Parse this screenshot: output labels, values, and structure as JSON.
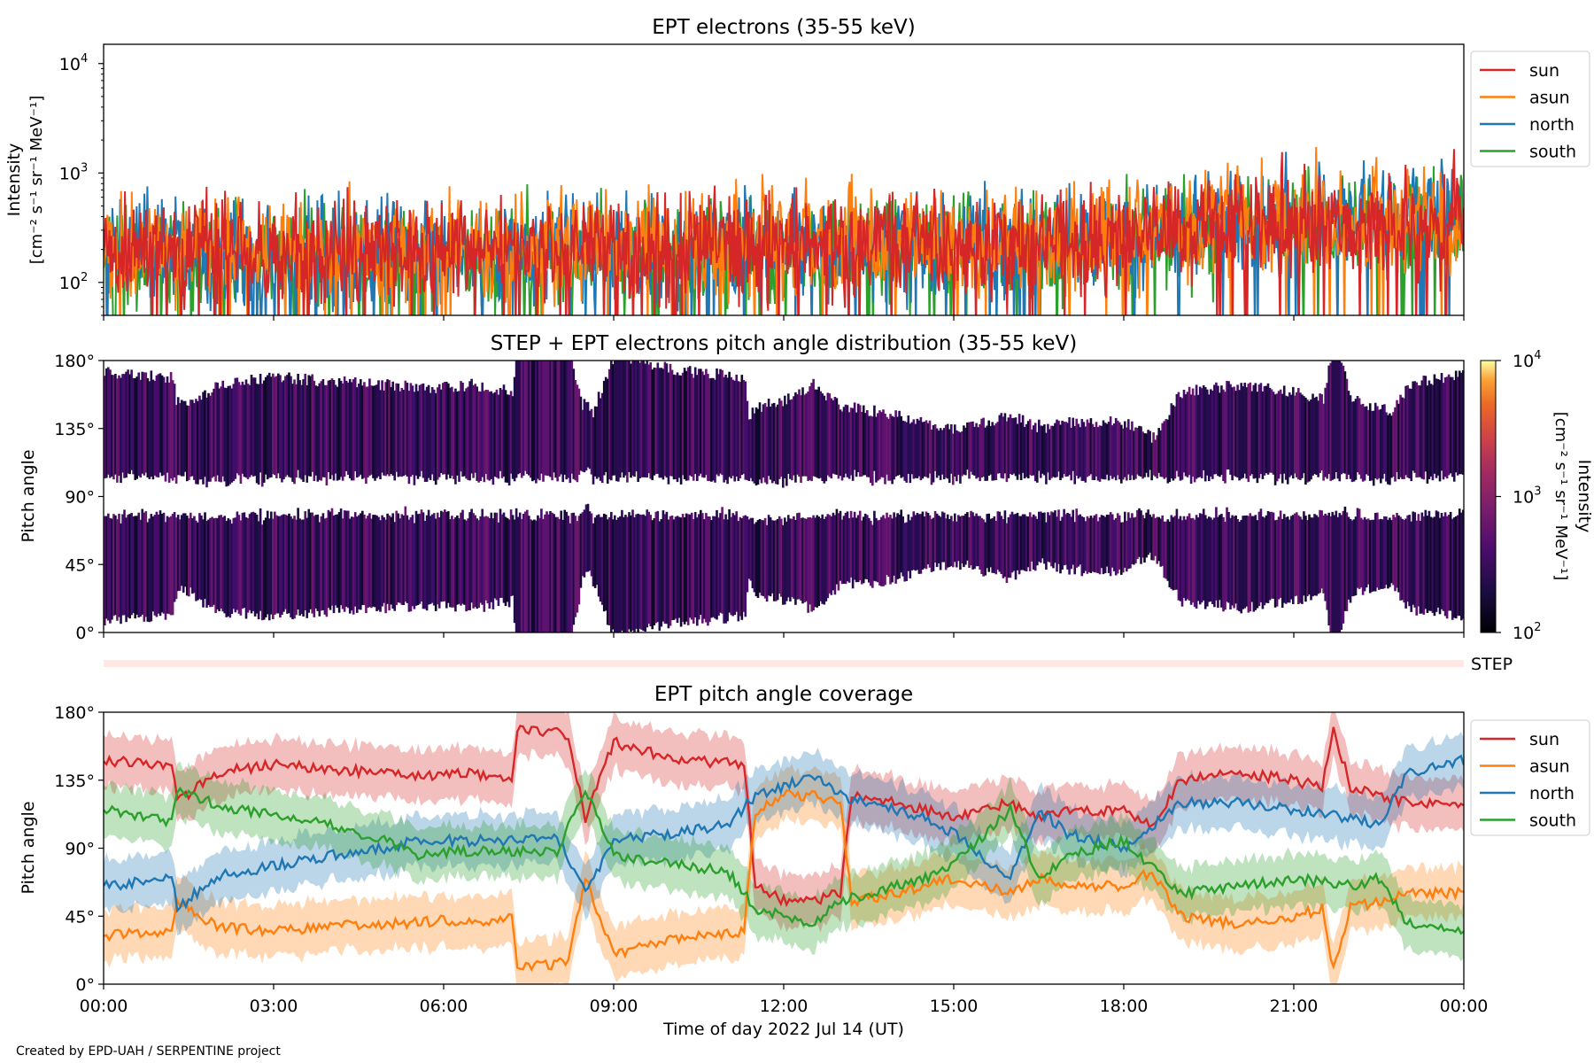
{
  "figure": {
    "credit": "Created by EPD-UAH / SERPENTINE project",
    "xlabel": "Time of day 2022 Jul 14 (UT)",
    "time_ticks": [
      "00:00",
      "03:00",
      "06:00",
      "09:00",
      "12:00",
      "15:00",
      "18:00",
      "21:00",
      "00:00"
    ],
    "series_colors": {
      "sun": "#d62728",
      "asun": "#ff7f0e",
      "north": "#1f77b4",
      "south": "#2ca02c"
    }
  },
  "chart_data": [
    {
      "type": "line",
      "title": "EPT electrons (35-55 keV)",
      "ylabel_line1": "Intensity",
      "ylabel_line2": "[cm⁻² s⁻¹ sr⁻¹ MeV⁻¹]",
      "yscale": "log",
      "ylim": [
        50,
        15000
      ],
      "yticks": [
        {
          "exp": "2",
          "value": 100
        },
        {
          "exp": "3",
          "value": 1000
        },
        {
          "exp": "4",
          "value": 10000
        }
      ],
      "xlim_hours": [
        0,
        24
      ],
      "legend": [
        "sun",
        "asun",
        "north",
        "south"
      ],
      "legend_position": "outside right, top",
      "series": [
        {
          "name": "sun",
          "level_hours": [
            0,
            6,
            12,
            18,
            20,
            24
          ],
          "level_values": [
            200,
            190,
            220,
            240,
            330,
            340
          ]
        },
        {
          "name": "asun",
          "level_hours": [
            0,
            6,
            12,
            18,
            20,
            24
          ],
          "level_values": [
            210,
            200,
            230,
            250,
            360,
            380
          ]
        },
        {
          "name": "north",
          "level_hours": [
            0,
            6,
            12,
            18,
            20,
            24
          ],
          "level_values": [
            180,
            180,
            210,
            240,
            380,
            420
          ]
        },
        {
          "name": "south",
          "level_hours": [
            0,
            6,
            12,
            18,
            20,
            24
          ],
          "level_values": [
            170,
            170,
            200,
            230,
            340,
            360
          ]
        }
      ]
    },
    {
      "type": "heatmap",
      "title": "STEP + EPT electrons pitch angle distribution (35-55 keV)",
      "ylabel": "Pitch angle",
      "yticks": [
        "0°",
        "45°",
        "90°",
        "135°",
        "180°"
      ],
      "ylim": [
        0,
        180
      ],
      "xlim_hours": [
        0,
        24
      ],
      "colorbar": {
        "label_line1": "Intensity",
        "label_line2": "[cm⁻² s⁻¹ sr⁻¹ MeV⁻¹]",
        "scale": "log",
        "range": [
          100,
          10000
        ],
        "ticks": [
          {
            "exp": "2",
            "value": 100
          },
          {
            "exp": "3",
            "value": 1000
          },
          {
            "exp": "4",
            "value": 10000
          }
        ],
        "colormap": "inferno"
      },
      "step_strip_label": "STEP"
    },
    {
      "type": "line",
      "title": "EPT pitch angle coverage",
      "ylabel": "Pitch angle",
      "yticks": [
        "0°",
        "45°",
        "90°",
        "135°",
        "180°"
      ],
      "ylim": [
        0,
        180
      ],
      "xlim_hours": [
        0,
        24
      ],
      "band_halfwidth_deg": 17,
      "legend": [
        "sun",
        "asun",
        "north",
        "south"
      ],
      "legend_position": "outside right, top",
      "series": [
        {
          "name": "sun",
          "x": [
            0,
            1.2,
            1.3,
            2,
            3,
            4,
            5,
            6,
            6.5,
            7.2,
            7.3,
            8.2,
            8.5,
            9,
            10,
            11.3,
            11.5,
            12,
            12.5,
            13,
            13.2,
            14,
            15,
            16,
            16.5,
            17,
            18,
            18.5,
            19,
            20,
            21,
            21.5,
            21.7,
            22,
            22.5,
            23,
            24
          ],
          "y": [
            148,
            145,
            120,
            140,
            145,
            142,
            140,
            138,
            140,
            135,
            170,
            165,
            110,
            160,
            150,
            145,
            65,
            55,
            55,
            60,
            125,
            120,
            110,
            120,
            110,
            115,
            115,
            105,
            135,
            140,
            135,
            130,
            170,
            130,
            125,
            120,
            120
          ]
        },
        {
          "name": "asun",
          "x": [
            0,
            1.2,
            1.3,
            2,
            3,
            4,
            5,
            6,
            6.5,
            7.2,
            7.3,
            8.2,
            8.5,
            9,
            10,
            11.3,
            11.5,
            12,
            12.5,
            13,
            13.2,
            14,
            15,
            16,
            16.5,
            17,
            18,
            18.5,
            19,
            20,
            21,
            21.5,
            21.7,
            22,
            22.5,
            23,
            24
          ],
          "y": [
            32,
            35,
            55,
            38,
            35,
            38,
            40,
            42,
            40,
            45,
            10,
            15,
            70,
            20,
            30,
            35,
            115,
            125,
            125,
            120,
            55,
            60,
            70,
            60,
            70,
            65,
            65,
            75,
            45,
            40,
            45,
            50,
            10,
            50,
            55,
            60,
            60
          ]
        },
        {
          "name": "north",
          "x": [
            0,
            1.2,
            1.3,
            2,
            3,
            4,
            5,
            5.5,
            6,
            7,
            8,
            8.5,
            9,
            10,
            11,
            11.5,
            12,
            12.5,
            13,
            14,
            14.5,
            15,
            16,
            16.5,
            17,
            18,
            19,
            20,
            21,
            22,
            22.5,
            23,
            24
          ],
          "y": [
            65,
            70,
            50,
            72,
            78,
            85,
            90,
            95,
            95,
            95,
            98,
            60,
            95,
            100,
            105,
            125,
            130,
            140,
            125,
            115,
            110,
            100,
            70,
            115,
            100,
            90,
            120,
            120,
            115,
            110,
            105,
            140,
            148
          ]
        },
        {
          "name": "south",
          "x": [
            0,
            1.2,
            1.3,
            2,
            3,
            4,
            5,
            5.5,
            6,
            7,
            8,
            8.5,
            9,
            10,
            11,
            11.5,
            12,
            12.5,
            13,
            14,
            14.5,
            15,
            16,
            16.5,
            17,
            18,
            19,
            20,
            21,
            22,
            22.5,
            23,
            24
          ],
          "y": [
            115,
            108,
            130,
            118,
            112,
            105,
            95,
            85,
            88,
            88,
            88,
            130,
            85,
            80,
            75,
            50,
            45,
            40,
            55,
            65,
            70,
            80,
            115,
            70,
            85,
            95,
            60,
            65,
            70,
            65,
            70,
            40,
            35
          ]
        }
      ]
    }
  ]
}
